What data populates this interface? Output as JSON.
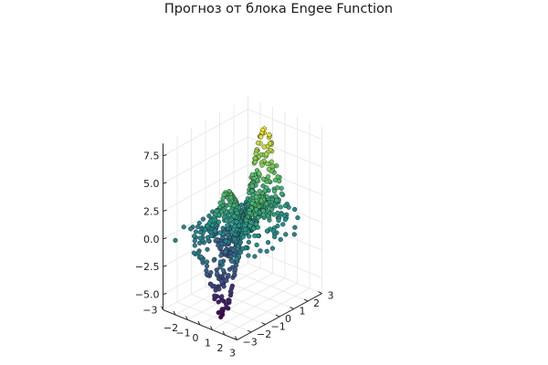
{
  "chart_data": {
    "type": "scatter3d",
    "title": "Прогноз от блока Engee Function",
    "xlabel": "",
    "ylabel": "",
    "zlabel": "",
    "x_ticks": [
      "−2",
      "−1",
      "0",
      "1",
      "2",
      "3"
    ],
    "y_ticks": [
      "−3",
      "−2",
      "−1",
      "0",
      "1",
      "2",
      "3"
    ],
    "z_ticks": [
      "−5.0",
      "−2.5",
      "0.0",
      "2.5",
      "5.0",
      "7.5"
    ],
    "x_corner_tick": "−3",
    "xlim": [
      -3,
      3
    ],
    "ylim": [
      -3,
      3
    ],
    "zlim": [
      -6.4,
      8.6
    ],
    "grid": true,
    "legend": "none",
    "colormap": "viridis",
    "color_stops": [
      "#440154",
      "#3b528b",
      "#21918c",
      "#5ec962",
      "#fde725"
    ],
    "marker_stroke": "#1a1a1a",
    "point_count": 900,
    "surface_formula": "z = 3*(1-x)^2*exp(-x^2-(y+1)^2) - 10*(x/5 - x^3 - y^5)*exp(-x^2-y^2) - exp(-(x+1)^2-y^2)/3"
  }
}
